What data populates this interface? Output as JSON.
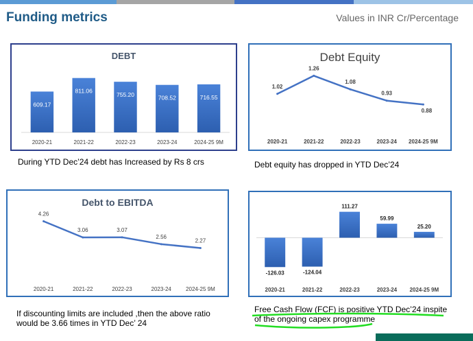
{
  "page": {
    "title": "Funding  metrics",
    "subtitle": "Values in INR Cr/Percentage",
    "top_bar_colors": [
      "#5b9bd5",
      "#a5a5a5",
      "#4472c4",
      "#9dc3e6"
    ],
    "footer_color": "#0a6c5a"
  },
  "captions": {
    "debt": "During YTD Dec’24 debt  has Increased by Rs 8 crs",
    "debt_equity": "Debt equity  has dropped in YTD Dec’24",
    "debt_ebitda_line1": "If  discounting limits  are  included ,then the above ratio",
    "debt_ebitda_line2": "would be 3.66 times in YTD Dec’ 24",
    "fcf_line1": "Free Cash Flow (FCF) is positive  YTD Dec’24 inspite",
    "fcf_line2": "of the ongoing capex programme"
  },
  "chart_data": [
    {
      "type": "bar",
      "title": "DEBT",
      "categories": [
        "2020-21",
        "2021-22",
        "2022-23",
        "2023-24",
        "2024-25 9M"
      ],
      "values": [
        609.17,
        811.06,
        755.2,
        708.52,
        716.55
      ],
      "labels": [
        "609.17",
        "811.06",
        "755.20",
        "708.52",
        "716.55"
      ],
      "ylim": [
        0,
        900
      ],
      "bar_color": "#3a6fc4"
    },
    {
      "type": "line",
      "title": "Debt Equity",
      "categories": [
        "2020-21",
        "2021-22",
        "2022-23",
        "2023-24",
        "2024-25 9M"
      ],
      "values": [
        1.02,
        1.26,
        1.08,
        0.93,
        0.88
      ],
      "labels": [
        "1.02",
        "1.26",
        "1.08",
        "0.93",
        "0.88"
      ],
      "ylim": [
        0.6,
        1.4
      ],
      "line_color": "#4472c4"
    },
    {
      "type": "line",
      "title": "Debt to EBITDA",
      "categories": [
        "2020-21",
        "2021-22",
        "2022-23",
        "2023-24",
        "2024-25 9M"
      ],
      "values": [
        4.26,
        3.06,
        3.07,
        2.56,
        2.27
      ],
      "labels": [
        "4.26",
        "3.06",
        "3.07",
        "2.56",
        "2.27"
      ],
      "ylim": [
        0,
        5
      ],
      "line_color": "#4472c4"
    },
    {
      "type": "bar",
      "title": "",
      "categories": [
        "2020-21",
        "2021-22",
        "2022-23",
        "2023-24",
        "2024-25 9M"
      ],
      "values": [
        -126.03,
        -124.04,
        111.27,
        59.99,
        25.2
      ],
      "labels": [
        "-126.03",
        "-124.04",
        "111.27",
        "59.99",
        "25.20"
      ],
      "ylim": [
        -140,
        125
      ],
      "bar_color": "#3a6fc4"
    }
  ]
}
